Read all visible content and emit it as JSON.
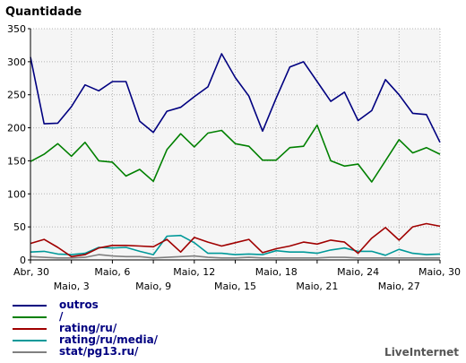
{
  "chart_data": {
    "type": "line",
    "title": "Quantidade",
    "xlabel": "",
    "ylabel": "",
    "ylim": [
      0,
      350
    ],
    "yticks": [
      0,
      50,
      100,
      150,
      200,
      250,
      300,
      350
    ],
    "grid": true,
    "legend_position": "bottom-left",
    "x_ticks_top": [
      "Abr, 30",
      "Maio, 6",
      "Maio, 12",
      "Maio, 18",
      "Maio, 24",
      "Maio, 30"
    ],
    "x_ticks_bottom": [
      "Maio, 3",
      "Maio, 9",
      "Maio, 15",
      "Maio, 21",
      "Maio, 27"
    ],
    "x_tick_days": [
      0,
      3,
      6,
      9,
      12,
      15,
      18,
      21,
      24,
      27,
      30
    ],
    "series": [
      {
        "name": "outros",
        "color": "#000080",
        "values": [
          307,
          206,
          207,
          232,
          265,
          256,
          270,
          270,
          210,
          193,
          225,
          231,
          247,
          262,
          312,
          276,
          248,
          195,
          245,
          292,
          300,
          270,
          240,
          254,
          211,
          226,
          273,
          250,
          222,
          220,
          178
        ]
      },
      {
        "name": "/",
        "color": "#008000",
        "values": [
          149,
          160,
          176,
          157,
          178,
          150,
          148,
          127,
          137,
          119,
          167,
          191,
          171,
          192,
          196,
          176,
          172,
          151,
          151,
          170,
          172,
          204,
          150,
          142,
          145,
          118,
          150,
          182,
          162,
          170,
          160
        ]
      },
      {
        "name": "rating/ru/",
        "color": "#a00000",
        "values": [
          25,
          31,
          19,
          5,
          8,
          18,
          22,
          22,
          21,
          20,
          31,
          12,
          34,
          27,
          21,
          26,
          31,
          11,
          17,
          21,
          27,
          24,
          30,
          27,
          10,
          33,
          49,
          30,
          50,
          55,
          51
        ]
      },
      {
        "name": "rating/ru/media/",
        "color": "#009999",
        "values": [
          12,
          13,
          9,
          8,
          10,
          19,
          18,
          19,
          13,
          8,
          36,
          37,
          26,
          10,
          10,
          8,
          9,
          8,
          14,
          12,
          12,
          10,
          15,
          18,
          13,
          13,
          7,
          16,
          10,
          8,
          9
        ]
      },
      {
        "name": "stat/pg13.ru/",
        "color": "#808080",
        "values": [
          5,
          4,
          3,
          3,
          4,
          8,
          6,
          5,
          5,
          3,
          4,
          5,
          6,
          4,
          3,
          3,
          4,
          3,
          3,
          3,
          3,
          3,
          4,
          4,
          3,
          3,
          3,
          3,
          3,
          3,
          3
        ]
      }
    ]
  },
  "branding": "LiveInternet"
}
